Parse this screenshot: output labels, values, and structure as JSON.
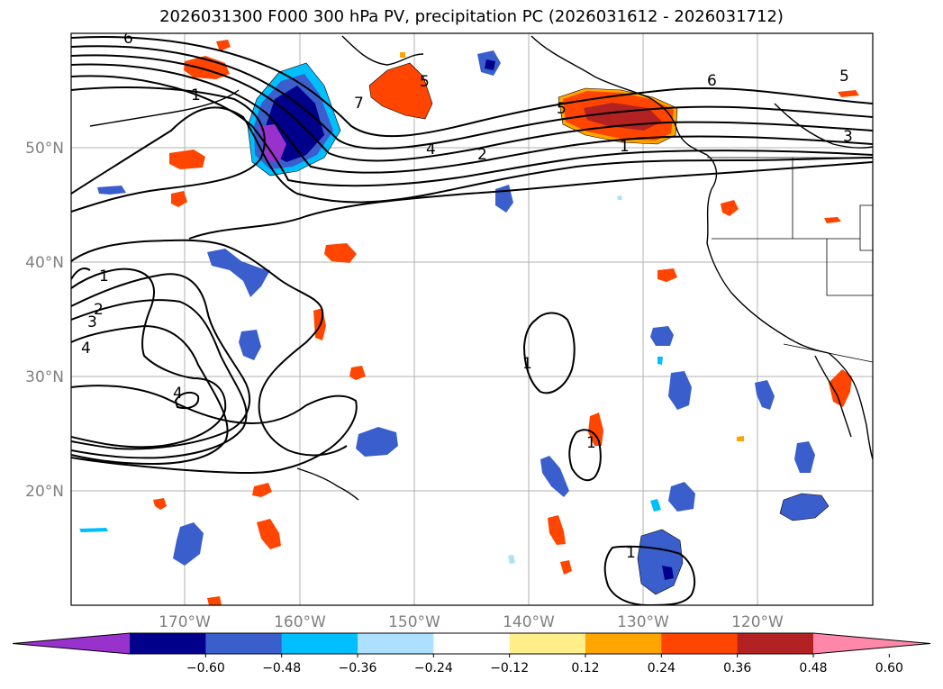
{
  "title": "2026031300 F000 300 hPa PV, precipitation PC (2026031612 - 2026031712)",
  "map": {
    "lat_ticks": [
      "50°N",
      "40°N",
      "30°N",
      "20°N"
    ],
    "lon_ticks": [
      "170°W",
      "160°W",
      "150°W",
      "140°W",
      "130°W",
      "120°W"
    ]
  },
  "contour_labels": [
    "6",
    "1",
    "7",
    "5",
    "4",
    "2",
    "5",
    "1",
    "6",
    "5",
    "3",
    "1",
    "2",
    "3",
    "4",
    "1",
    "1",
    "4",
    "1"
  ],
  "colorbar": {
    "tick_labels": [
      "−0.60",
      "−0.48",
      "−0.36",
      "−0.24",
      "−0.12",
      "0.12",
      "0.24",
      "0.36",
      "0.48",
      "0.60"
    ],
    "colors": [
      "#9932CC",
      "#00008B",
      "#3A5FCD",
      "#00BFFF",
      "#ADDFFF",
      "#FFFFFF",
      "#FFEE8A",
      "#FFA500",
      "#FF4500",
      "#B22222",
      "#FF88AA"
    ]
  }
}
